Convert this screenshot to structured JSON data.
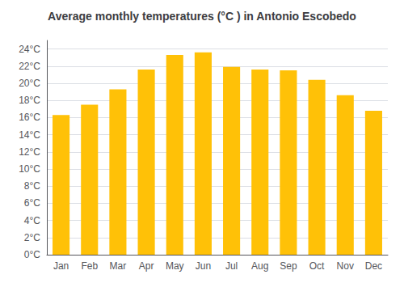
{
  "chart_data": {
    "type": "bar",
    "title": "Average monthly temperatures (°C ) in Antonio Escobedo",
    "categories": [
      "Jan",
      "Feb",
      "Mar",
      "Apr",
      "May",
      "Jun",
      "Jul",
      "Aug",
      "Sep",
      "Oct",
      "Nov",
      "Dec"
    ],
    "values": [
      16.3,
      17.5,
      19.3,
      21.6,
      23.3,
      23.6,
      21.9,
      21.6,
      21.5,
      20.4,
      18.6,
      16.8
    ],
    "color": "#FFC107",
    "ylim": [
      0,
      25
    ],
    "yticks": [
      {
        "value": 0,
        "label": "0°C"
      },
      {
        "value": 2,
        "label": "2°C"
      },
      {
        "value": 4,
        "label": "4°C"
      },
      {
        "value": 6,
        "label": "6°C"
      },
      {
        "value": 8,
        "label": "8°C"
      },
      {
        "value": 10,
        "label": "10°C"
      },
      {
        "value": 12,
        "label": "12°C"
      },
      {
        "value": 14,
        "label": "14°C"
      },
      {
        "value": 16,
        "label": "16°C"
      },
      {
        "value": 18,
        "label": "18°C"
      },
      {
        "value": 20,
        "label": "20°C"
      },
      {
        "value": 22,
        "label": "22°C"
      },
      {
        "value": 24,
        "label": "24°C"
      }
    ],
    "grid": true
  }
}
